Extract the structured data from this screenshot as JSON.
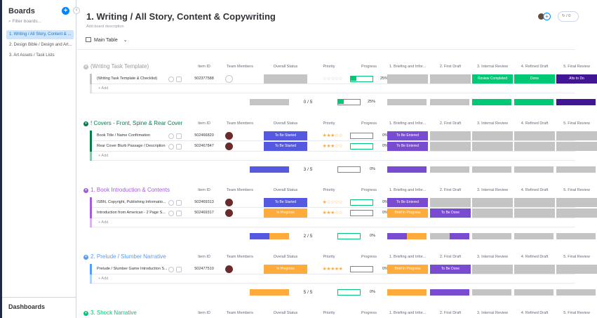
{
  "sidebar": {
    "title": "Boards",
    "filter_placeholder": "Filter boards...",
    "items": [
      {
        "label": "1. Writing / All Story, Content & ..."
      },
      {
        "label": "2. Design Bible / Design and Art..."
      },
      {
        "label": "3. Art Assets / Task Lists"
      }
    ],
    "dashboards": "Dashboards",
    "add_icon": "plus-icon",
    "collapse_icon": "chevron-left-icon"
  },
  "header": {
    "title": "1. Writing / All Story, Content & Copywriting",
    "description": "Add board description",
    "view_label": "Main Table",
    "activity_count": "/ 0"
  },
  "columns": {
    "item_id": "Item ID",
    "team": "Team Members",
    "status": "Overall Status",
    "priority": "Priority",
    "progress": "Progress",
    "briefing": "1. Briefing and Infor...",
    "first_draft": "2. First Draft",
    "internal": "3. Internal Review",
    "refined": "4. Refined Draft",
    "final": "5. Final Review"
  },
  "colors": {
    "green": "#00c875",
    "purple": "#784bd1",
    "blue": "#579bfc",
    "orange": "#fdab3d",
    "indigo": "#5559df",
    "grey": "#c4c4c4",
    "dark_purple": "#401694",
    "light_blue": "#4eccc6"
  },
  "add_label": "+ Add",
  "groups": [
    {
      "name": "(Writing Task Template)",
      "color": "#c4c4c4",
      "name_color": "#999999",
      "rows": [
        {
          "name": "(Writing Task Template & Checklist)",
          "id": "502377588",
          "stars": "☆☆☆☆☆",
          "stars_fill": 0,
          "progress": 25,
          "progress_text": "25%",
          "status": "",
          "briefing": "",
          "first": "",
          "internal": "Review Completed",
          "refined": "Done",
          "final": "Alts to Do"
        }
      ],
      "summary": {
        "count": "0 / 5",
        "pct": "25%"
      }
    },
    {
      "name": "! Covers - Front, Spine & Rear Cover",
      "color": "#037f4c",
      "name_color": "#037f4c",
      "rows": [
        {
          "name": "Book Title / Name Confirmation",
          "id": "502466820",
          "stars": "★★★☆☆",
          "progress": 0,
          "progress_text": "0%",
          "status": "To Be Started",
          "briefing": "To Be Entered",
          "first": "",
          "internal": "",
          "refined": "",
          "final": ""
        },
        {
          "name": "Rear Cover Blurb Passage / Description",
          "id": "502467847",
          "stars": "★★★☆☆",
          "progress": 0,
          "progress_text": "0%",
          "status": "To Be Started",
          "briefing": "To Be Entered",
          "first": "",
          "internal": "",
          "refined": "",
          "final": ""
        }
      ],
      "summary": {
        "count": "3 / 5",
        "pct": "0%"
      }
    },
    {
      "name": "1. Book Introduction & Contents",
      "color": "#a25ddc",
      "name_color": "#a25ddc",
      "rows": [
        {
          "name": "ISBN, Copyright, Publishing Informatio...",
          "id": "502469313",
          "stars": "★☆☆☆☆",
          "progress": 0,
          "progress_text": "0%",
          "status": "To Be Started",
          "briefing": "To Be Entered",
          "first": "",
          "internal": "",
          "refined": "",
          "final": ""
        },
        {
          "name": "Introduction from American - 2 Page S...",
          "id": "502469317",
          "stars": "★★★☆☆",
          "progress": 0,
          "progress_text": "0%",
          "status": "In Progress",
          "briefing": "Brief in Progress",
          "first": "To Be Done",
          "internal": "",
          "refined": "",
          "final": ""
        }
      ],
      "summary": {
        "count": "2 / 5",
        "pct": "0%"
      }
    },
    {
      "name": "2. Prelude / Slumber Narrative",
      "color": "#579bfc",
      "name_color": "#579bfc",
      "rows": [
        {
          "name": "Prelude / Slumber Game Introduction S...",
          "id": "502477510",
          "stars": "★★★★★",
          "progress": 0,
          "progress_text": "0%",
          "status": "In Progress",
          "briefing": "Brief in Progress",
          "first": "To Be Done",
          "internal": "",
          "refined": "",
          "final": ""
        }
      ],
      "summary": {
        "count": "5 / 5",
        "pct": "0%"
      }
    },
    {
      "name": "3. Shock Narrative",
      "color": "#00c875",
      "name_color": "#00c875",
      "rows": [],
      "summary": null
    }
  ]
}
